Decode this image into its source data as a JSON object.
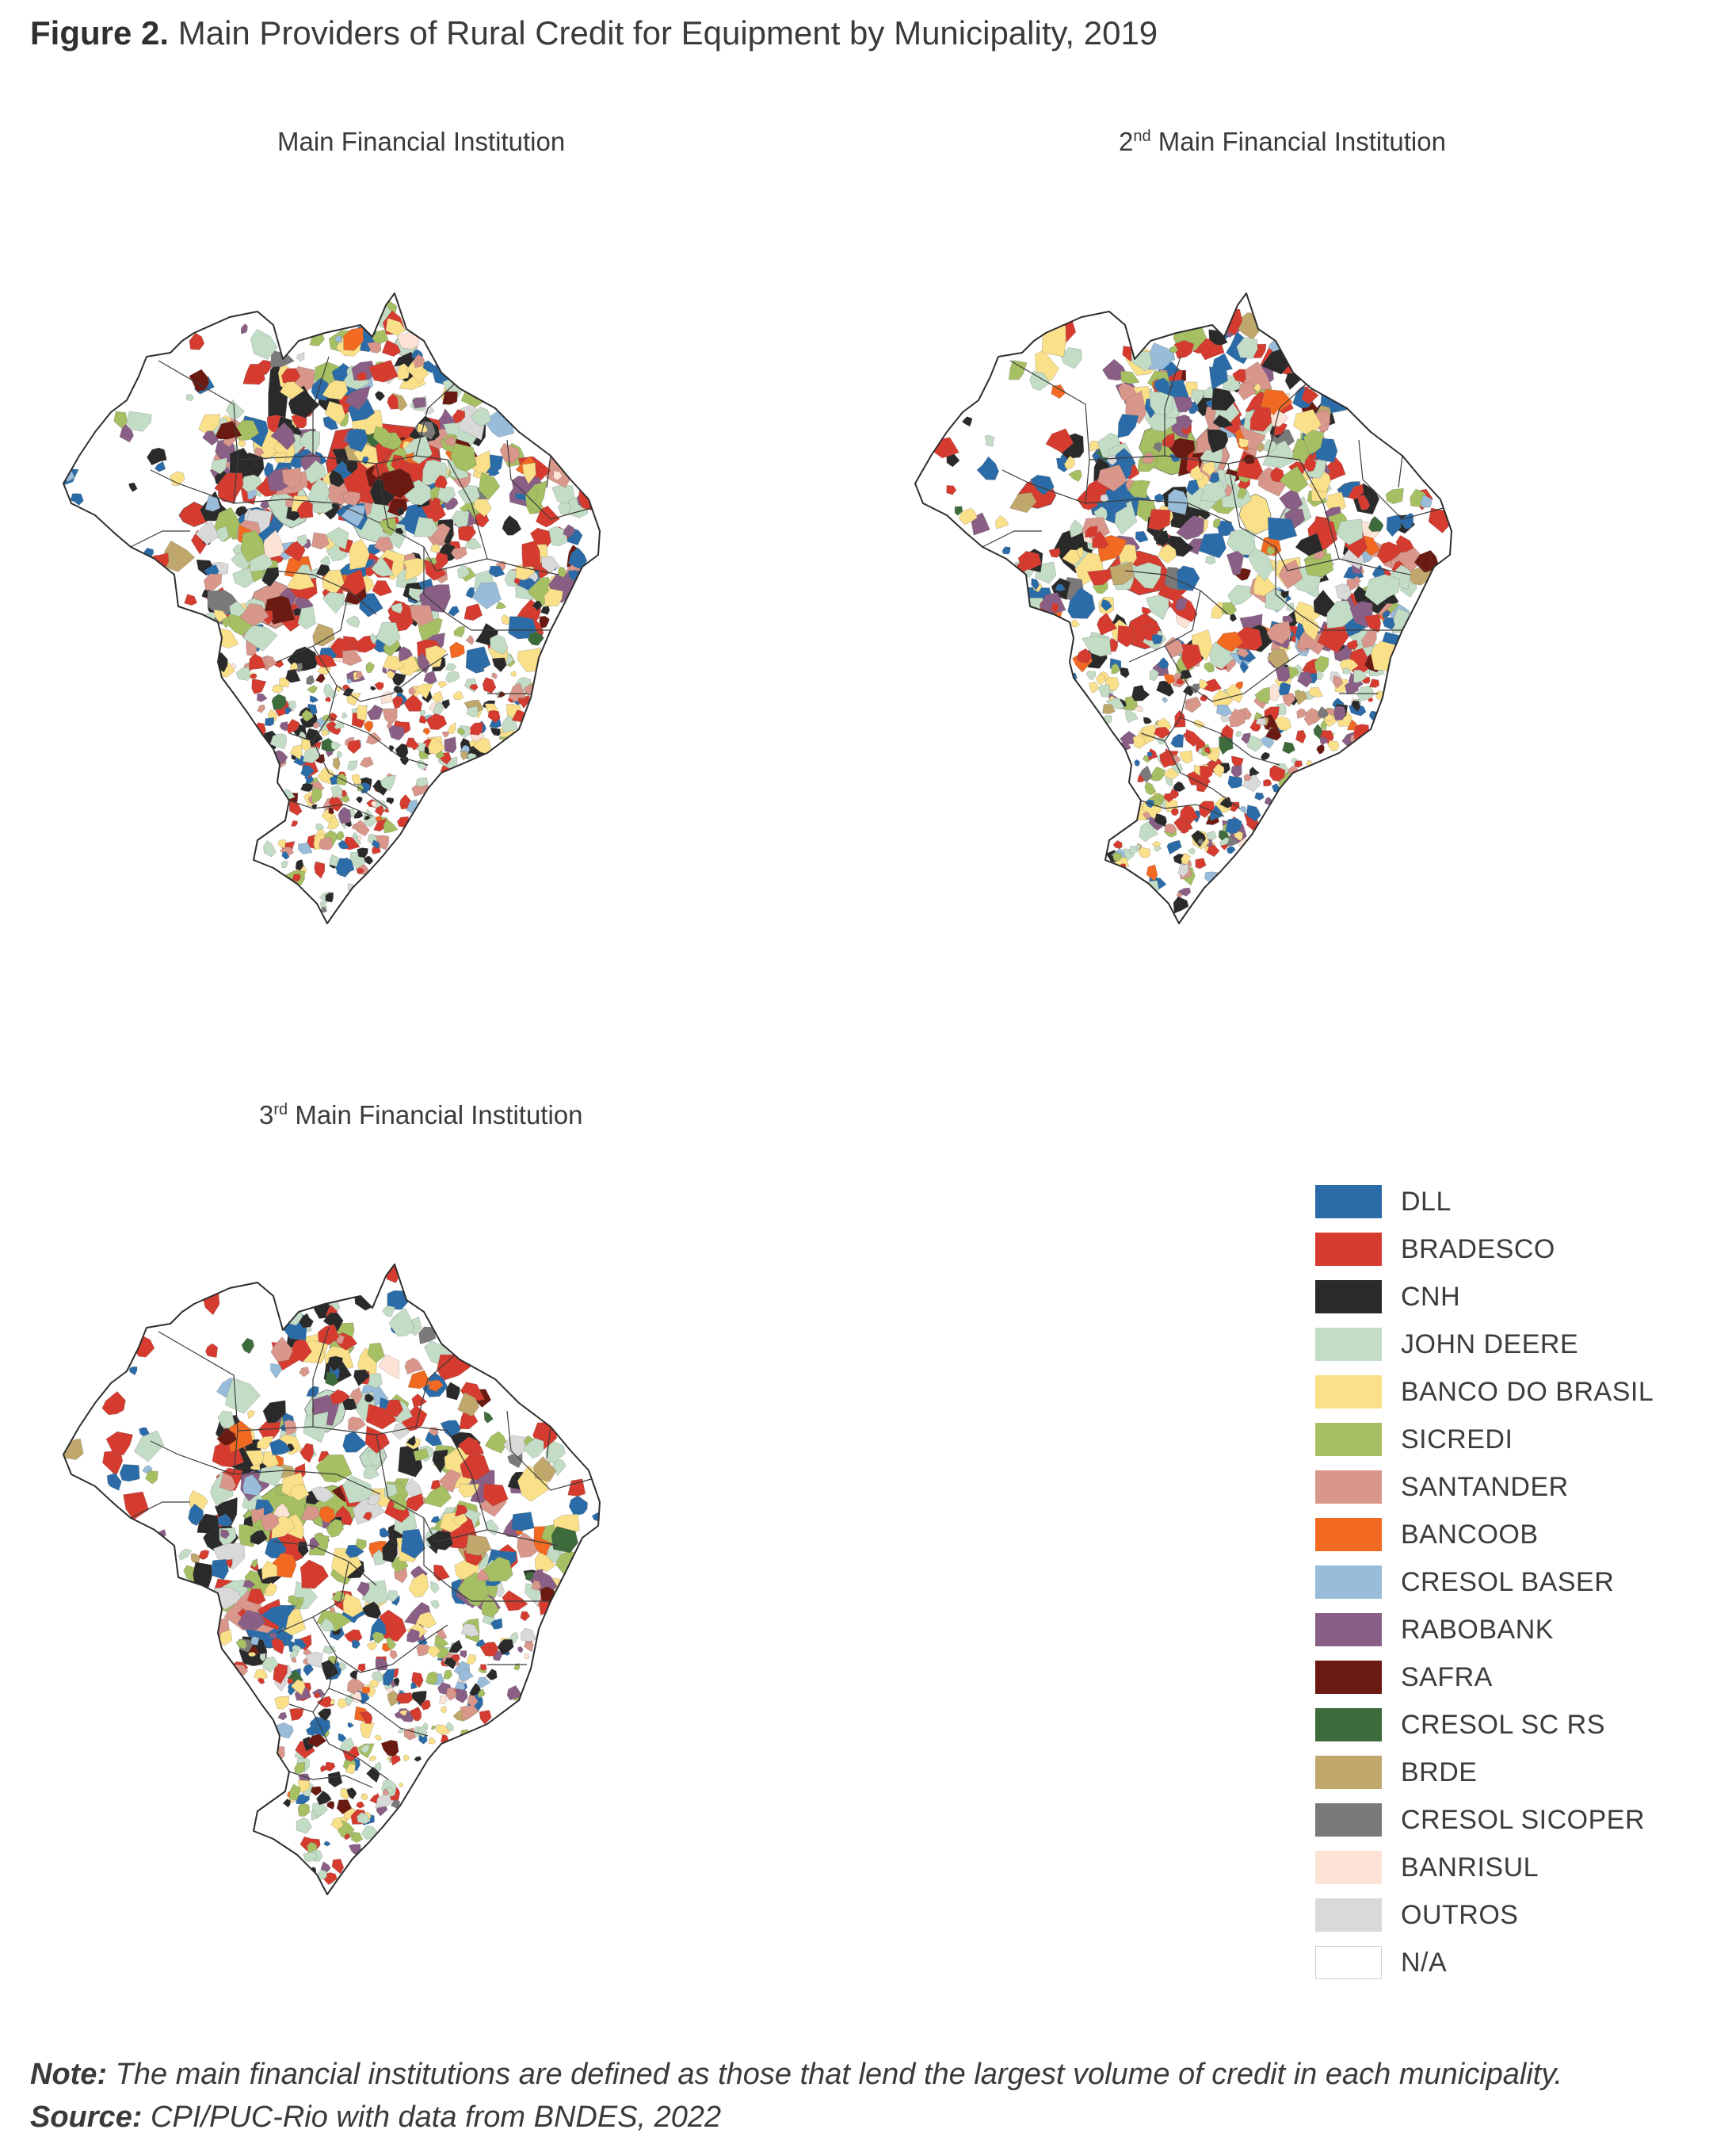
{
  "figure": {
    "label": "Figure 2.",
    "title": "Main Providers of Rural Credit for Equipment by Municipality, 2019"
  },
  "panels": [
    {
      "title_prefix": "",
      "title_sup": "",
      "title": "Main Financial Institution"
    },
    {
      "title_prefix": "2",
      "title_sup": "nd",
      "title": " Main Financial Institution"
    },
    {
      "title_prefix": "3",
      "title_sup": "rd",
      "title": " Main Financial Institution"
    }
  ],
  "legend": {
    "items": [
      {
        "label": "DLL",
        "color": "#2b6ca8"
      },
      {
        "label": "BRADESCO",
        "color": "#d63b2f"
      },
      {
        "label": "CNH",
        "color": "#2a2a2a"
      },
      {
        "label": "JOHN DEERE",
        "color": "#c3dcc6"
      },
      {
        "label": "BANCO DO BRASIL",
        "color": "#fbe08a"
      },
      {
        "label": "SICREDI",
        "color": "#a6bf62"
      },
      {
        "label": "SANTANDER",
        "color": "#d9968a"
      },
      {
        "label": "BANCOOB",
        "color": "#f26a21"
      },
      {
        "label": "CRESOL BASER",
        "color": "#98bcd9"
      },
      {
        "label": "RABOBANK",
        "color": "#8a5f86"
      },
      {
        "label": "SAFRA",
        "color": "#6b1a12"
      },
      {
        "label": "CRESOL SC RS",
        "color": "#3d6b3c"
      },
      {
        "label": "BRDE",
        "color": "#c0a86c"
      },
      {
        "label": "CRESOL SICOPER",
        "color": "#7a7a7a"
      },
      {
        "label": "BANRISUL",
        "color": "#fde3d6"
      },
      {
        "label": "OUTROS",
        "color": "#d9d9d9"
      },
      {
        "label": "N/A",
        "color": "#ffffff"
      }
    ]
  },
  "note": {
    "label": "Note:",
    "text": " The main financial institutions are defined as those that lend the largest volume of credit in each municipality."
  },
  "source": {
    "label": "Source:",
    "text": " CPI/PUC-Rio with data from BNDES, 2022"
  }
}
